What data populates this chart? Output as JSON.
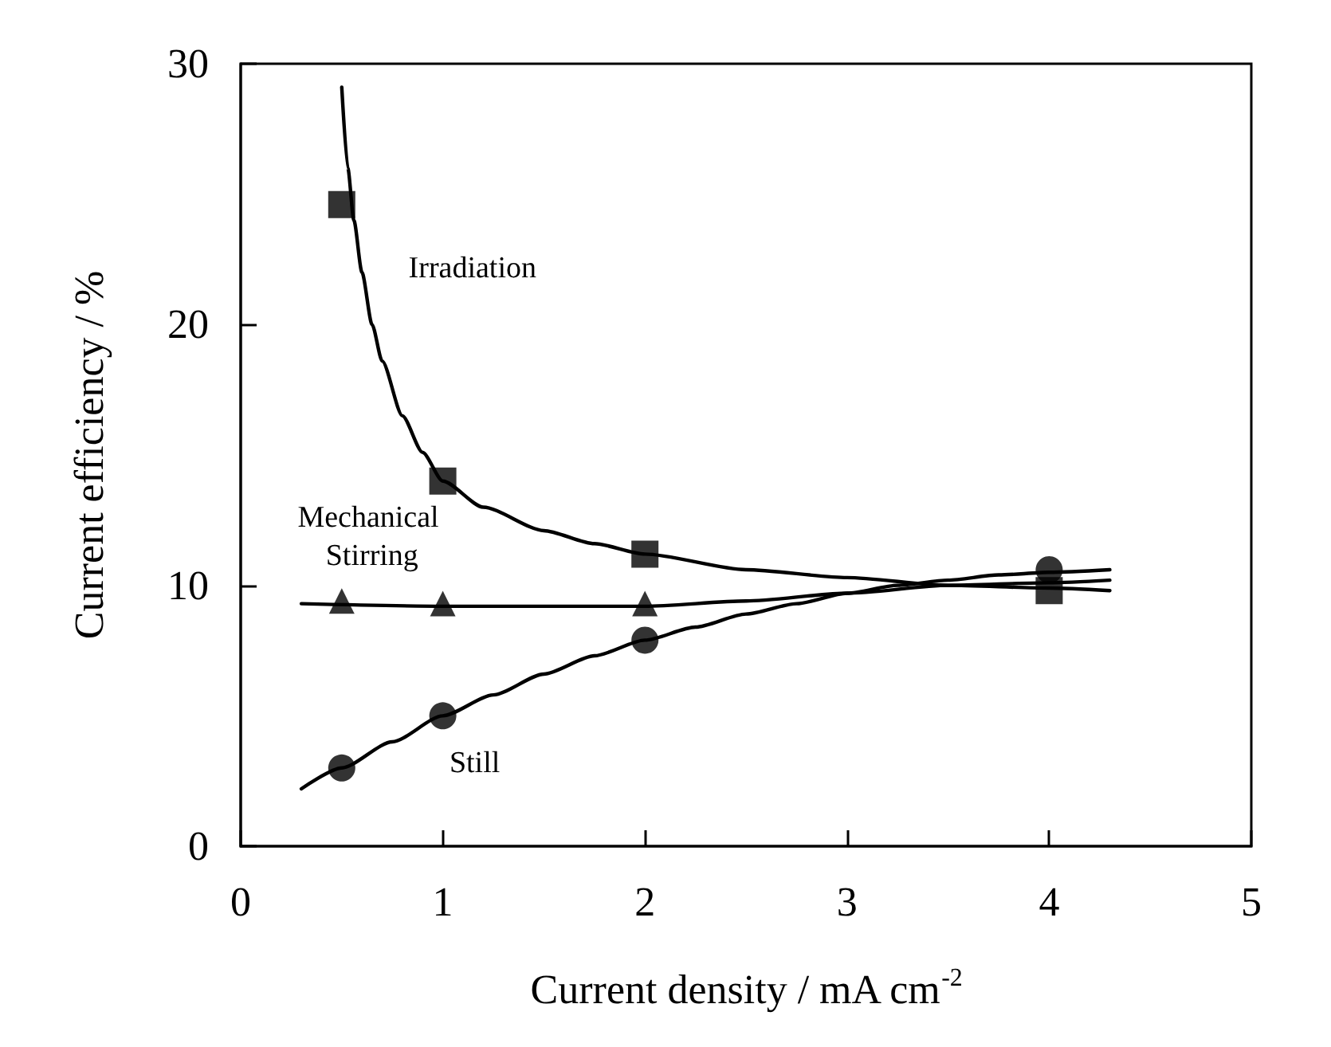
{
  "chart_data": {
    "type": "scatter",
    "xlabel": "Current density / mA cm$^{-2}$",
    "ylabel": "Current efficiency / %",
    "xlim": [
      0,
      5
    ],
    "xticks": [
      0,
      1,
      2,
      3,
      4,
      5
    ],
    "ylim": [
      0,
      30
    ],
    "yticks": [
      0,
      10,
      20,
      30
    ],
    "grid": false,
    "series": [
      {
        "name": "Irradiation",
        "marker": "square",
        "color": "#000000",
        "x": [
          0.5,
          1,
          2,
          4
        ],
        "values": [
          24.6,
          14.0,
          11.2,
          9.8
        ]
      },
      {
        "name": "Mechanical Stirring",
        "marker": "triangle",
        "color": "#000000",
        "x": [
          0.5,
          1,
          2
        ],
        "values": [
          9.4,
          9.3,
          9.3
        ]
      },
      {
        "name": "Still",
        "marker": "circle",
        "color": "#000000",
        "x": [
          0.5,
          1,
          2,
          4
        ],
        "values": [
          3.0,
          5.0,
          7.9,
          10.6
        ]
      },
      {
        "type": "line",
        "marker": "none",
        "color": "#000000",
        "x": [
          0.5,
          0.53,
          0.56,
          0.6,
          0.65,
          0.7,
          0.8,
          0.9,
          1,
          1.2,
          1.5,
          1.75,
          2,
          2.5,
          3,
          3.5,
          4,
          4.3
        ],
        "values": [
          29.1,
          26.0,
          24.0,
          22.0,
          20.0,
          18.6,
          16.5,
          15.1,
          14.0,
          13.0,
          12.1,
          11.6,
          11.2,
          10.6,
          10.3,
          10.0,
          9.9,
          9.8
        ]
      },
      {
        "type": "line",
        "marker": "none",
        "color": "#000000",
        "x": [
          0.3,
          1,
          1.5,
          2,
          2.5,
          3,
          3.5,
          4,
          4.3
        ],
        "values": [
          9.3,
          9.2,
          9.2,
          9.2,
          9.4,
          9.7,
          10.0,
          10.1,
          10.2
        ]
      },
      {
        "type": "line",
        "marker": "none",
        "color": "#000000",
        "x": [
          0.3,
          0.5,
          0.75,
          1,
          1.25,
          1.5,
          1.75,
          2,
          2.25,
          2.5,
          2.75,
          3,
          3.25,
          3.5,
          3.75,
          4,
          4.3
        ],
        "values": [
          2.2,
          3.0,
          4.0,
          5.0,
          5.8,
          6.6,
          7.3,
          7.9,
          8.4,
          8.9,
          9.3,
          9.7,
          10.0,
          10.2,
          10.4,
          10.5,
          10.6
        ]
      }
    ]
  }
}
